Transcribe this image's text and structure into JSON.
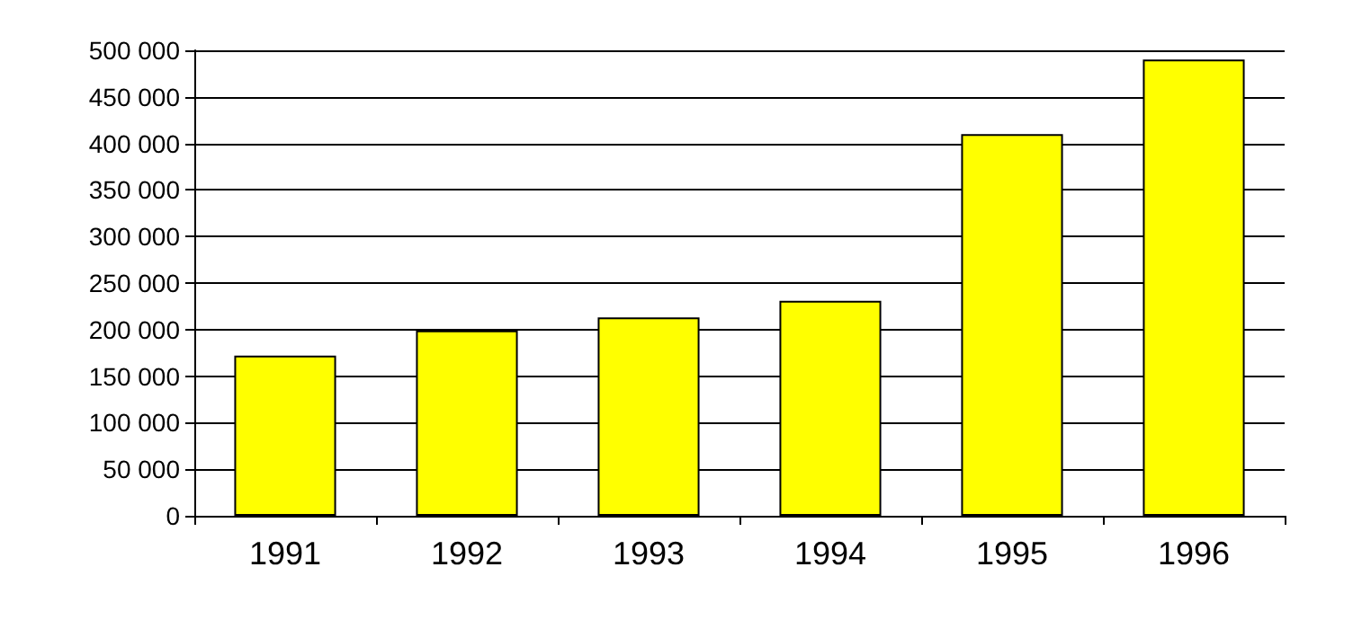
{
  "chart_data": {
    "type": "bar",
    "categories": [
      "1991",
      "1992",
      "1993",
      "1994",
      "1995",
      "1996"
    ],
    "values": [
      172000,
      199000,
      213000,
      231000,
      410000,
      490000
    ],
    "color": "#ffff00",
    "ylim": [
      0,
      500000
    ],
    "yticks": [
      {
        "value": 0,
        "label": "0"
      },
      {
        "value": 50000,
        "label": "50 000"
      },
      {
        "value": 100000,
        "label": "100 000"
      },
      {
        "value": 150000,
        "label": "150 000"
      },
      {
        "value": 200000,
        "label": "200 000"
      },
      {
        "value": 250000,
        "label": "250 000"
      },
      {
        "value": 300000,
        "label": "300 000"
      },
      {
        "value": 350000,
        "label": "350 000"
      },
      {
        "value": 400000,
        "label": "400 000"
      },
      {
        "value": 450000,
        "label": "450 000"
      },
      {
        "value": 500000,
        "label": "500 000"
      }
    ],
    "grid": "y"
  }
}
